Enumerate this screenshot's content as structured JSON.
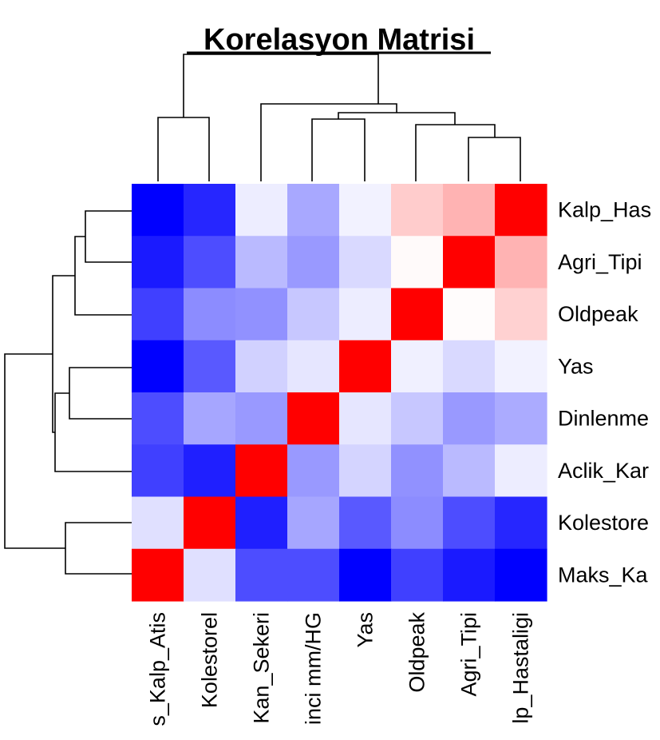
{
  "chart_data": {
    "type": "heatmap",
    "title": "Korelasyon Matrisi",
    "row_labels": [
      "Kalp_Hastaligi",
      "Agri_Tipi",
      "Oldpeak",
      "Yas",
      "Dinlenme_Kan_Basinci mm/HG",
      "Aclik_Kan_Sekeri",
      "Kolestorel",
      "Maks_Kalp_Atis"
    ],
    "col_labels": [
      "Maks_Kalp_Atis",
      "Kolestorel",
      "Aclik_Kan_Sekeri",
      "Dinlenme_Kan_Basinci mm/HG",
      "Yas",
      "Oldpeak",
      "Agri_Tipi",
      "Kalp_Hastaligi"
    ],
    "visible_row_labels": [
      "Kalp_Has",
      "Agri_Tipi",
      "Oldpeak",
      "Yas",
      "Dinlenme",
      "Aclik_Kar",
      "Kolestore",
      "Maks_Ka"
    ],
    "visible_col_labels": [
      "s_Kalp_Atis",
      "Kolestorel",
      "Kan_Sekeri",
      "inci mm/HG",
      "Yas",
      "Oldpeak",
      "Agri_Tipi",
      "lp_Hastaligi"
    ],
    "values": [
      [
        -1.0,
        -0.85,
        -0.07,
        -0.34,
        -0.05,
        0.2,
        0.3,
        1.0
      ],
      [
        -0.9,
        -0.7,
        -0.27,
        -0.4,
        -0.15,
        0.02,
        1.0,
        0.3
      ],
      [
        -0.75,
        -0.45,
        -0.43,
        -0.22,
        -0.07,
        1.0,
        0.01,
        0.18
      ],
      [
        -1.0,
        -0.65,
        -0.18,
        -0.1,
        1.0,
        -0.06,
        -0.15,
        -0.05
      ],
      [
        -0.7,
        -0.35,
        -0.4,
        1.0,
        -0.1,
        -0.22,
        -0.4,
        -0.33
      ],
      [
        -0.75,
        -0.88,
        1.0,
        -0.4,
        -0.17,
        -0.43,
        -0.27,
        -0.07
      ],
      [
        -0.12,
        1.0,
        -0.88,
        -0.35,
        -0.65,
        -0.45,
        -0.7,
        -0.85
      ],
      [
        1.0,
        -0.12,
        -0.7,
        -0.7,
        -1.0,
        -0.75,
        -0.9,
        -1.0
      ]
    ],
    "color_low": "#0000ff",
    "color_mid": "#ffffff",
    "color_high": "#ff0000",
    "range": [
      -1,
      1
    ]
  }
}
